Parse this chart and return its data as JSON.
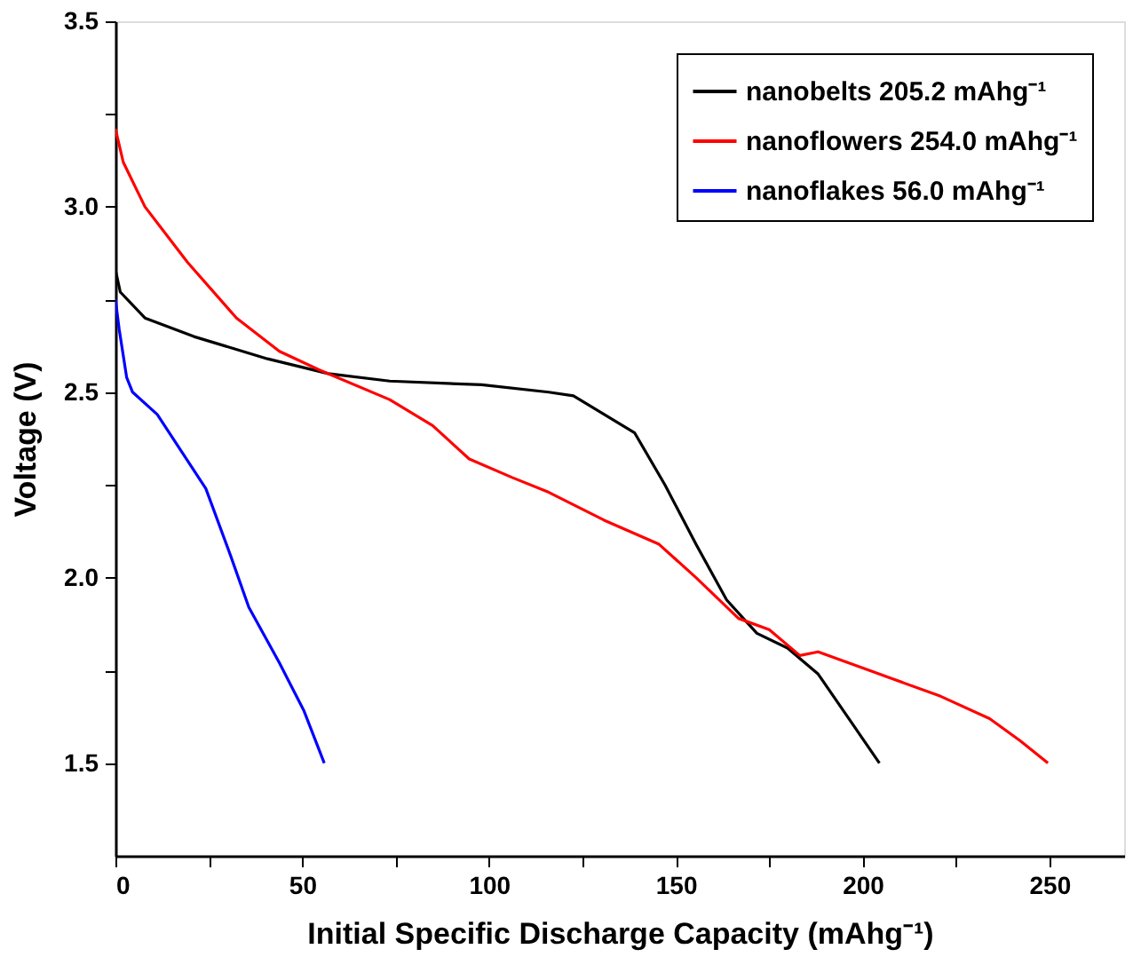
{
  "chart_data": {
    "type": "line",
    "xlabel": "Initial Specific Discharge Capacity (mAhg⁻¹)",
    "ylabel": "Voltage (V)",
    "xlim": [
      0,
      270
    ],
    "ylim": [
      1.25,
      3.5
    ],
    "xticks": [
      0,
      {
        "value": 25,
        "label": null
      },
      50,
      {
        "value": 75,
        "label": null
      },
      100,
      {
        "value": 125,
        "label": null
      },
      150,
      {
        "value": 175,
        "label": null
      },
      200,
      {
        "value": 225,
        "label": null
      },
      250
    ],
    "yticks": [
      1.5,
      {
        "value": 1.75,
        "label": null
      },
      {
        "value": 2,
        "label": "2.0"
      },
      {
        "value": 2.25,
        "label": null
      },
      2.5,
      {
        "value": 2.75,
        "label": null
      },
      {
        "value": 3,
        "label": "3.0"
      },
      {
        "value": 3.25,
        "label": null
      },
      3.5
    ],
    "grid": false,
    "legend": "top right",
    "marker": "none",
    "line_style": "solid",
    "series": [
      {
        "name": "nanobelts 205.2 mAhg⁻¹",
        "color": "#000000",
        "x": [
          0,
          1.3,
          7.9,
          21,
          40.7,
          57,
          73.4,
          98,
          116,
          122.6,
          139,
          147.1,
          155.4,
          163.6,
          171.7,
          179.9,
          188.1,
          196.3,
          204.5
        ],
        "values": [
          2.83,
          2.77,
          2.7,
          2.65,
          2.59,
          2.55,
          2.53,
          2.52,
          2.5,
          2.49,
          2.39,
          2.25,
          2.09,
          1.94,
          1.85,
          1.81,
          1.74,
          1.62,
          1.5
        ]
      },
      {
        "name": "nanoflowers 254.0 mAhg⁻¹",
        "color": "#ff0000",
        "x": [
          0,
          2.1,
          7.9,
          19.3,
          32.4,
          43.9,
          54.6,
          73.4,
          84.9,
          94.7,
          106.2,
          116,
          130.8,
          145.5,
          155.4,
          166.8,
          175,
          183.2,
          188.1,
          204.5,
          220.9,
          234,
          242.2,
          249.6
        ],
        "values": [
          3.21,
          3.12,
          3.0,
          2.85,
          2.7,
          2.61,
          2.56,
          2.48,
          2.41,
          2.32,
          2.27,
          2.23,
          2.155,
          2.09,
          2.0,
          1.89,
          1.86,
          1.79,
          1.8,
          1.74,
          1.68,
          1.62,
          1.56,
          1.5
        ]
      },
      {
        "name": "nanoflakes 56.0 mAhg⁻¹",
        "color": "#0000ff",
        "x": [
          0,
          1,
          3,
          4.6,
          11.2,
          17.7,
          24.2,
          30.8,
          35.7,
          43.9,
          50.5,
          55.9
        ],
        "values": [
          2.75,
          2.67,
          2.54,
          2.5,
          2.44,
          2.34,
          2.24,
          2.06,
          1.92,
          1.77,
          1.64,
          1.5
        ]
      }
    ]
  }
}
